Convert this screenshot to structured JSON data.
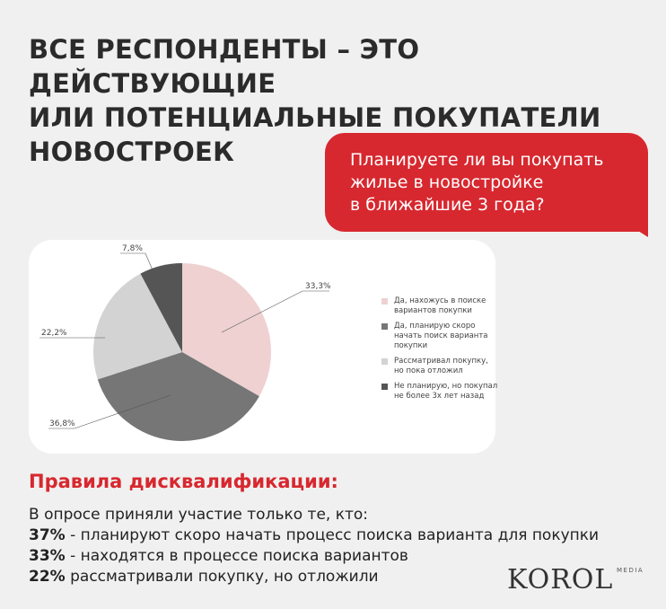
{
  "title": "ВСЕ РЕСПОНДЕНТЫ – ЭТО ДЕЙСТВУЮЩИЕ\nИЛИ ПОТЕНЦИАЛЬНЫЕ ПОКУПАТЕЛИ\nНОВОСТРОЕК",
  "question": "Планируете ли вы покупать\nжилье в новостройке\nв ближайшие 3 года?",
  "chart_data": {
    "type": "pie",
    "legend_position": "right",
    "slices": [
      {
        "label": "Да, нахожусь в поиске вариантов покупки",
        "value": 33.3,
        "value_label": "33,3%",
        "color": "#efd1d1"
      },
      {
        "label": "Да, планирую скоро начать поиск варианта покупки",
        "value": 36.8,
        "value_label": "36,8%",
        "color": "#767676"
      },
      {
        "label": "Рассматривал покупку, но пока отложил",
        "value": 22.2,
        "value_label": "22,2%",
        "color": "#d3d3d3"
      },
      {
        "label": "Не планирую, но покупал не более 3х лет назад",
        "value": 7.8,
        "value_label": "7,8%",
        "color": "#555555"
      }
    ]
  },
  "rules": {
    "heading": "Правила дисквалификации:",
    "intro": "В опросе приняли участие только те, кто:",
    "items": [
      {
        "pct": "37%",
        "text": " - планируют скоро начать процесс поиска варианта для покупки"
      },
      {
        "pct": "33%",
        "text": " - находятся в процессе поиска вариантов"
      },
      {
        "pct": "22%",
        "text": " рассматривали покупку, но отложили"
      }
    ]
  },
  "logo": {
    "main": "KOROL",
    "sub": "MEDIA"
  },
  "colors": {
    "accent": "#d7282f",
    "background": "#f0f0f0"
  }
}
